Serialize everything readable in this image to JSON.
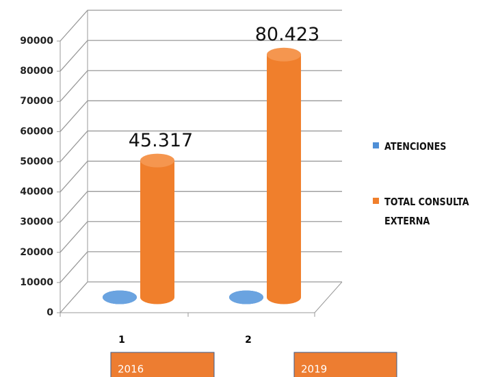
{
  "chart_data": {
    "type": "bar3d",
    "categories": [
      "1",
      "2"
    ],
    "series": [
      {
        "name": "ATENCIONES",
        "color": "#4f8fd6",
        "values": [
          0,
          0
        ]
      },
      {
        "name": "TOTAL CONSULTA EXTERNA",
        "color": "#f07f2c",
        "values": [
          45317,
          80423
        ],
        "value_labels": [
          "45.317",
          "80.423"
        ]
      }
    ],
    "annotations": [
      "2016",
      "2019"
    ],
    "ylim": [
      0,
      90000
    ],
    "yticks": [
      0,
      10000,
      20000,
      30000,
      40000,
      50000,
      60000,
      70000,
      80000,
      90000
    ],
    "grid": true,
    "legend": "right"
  }
}
